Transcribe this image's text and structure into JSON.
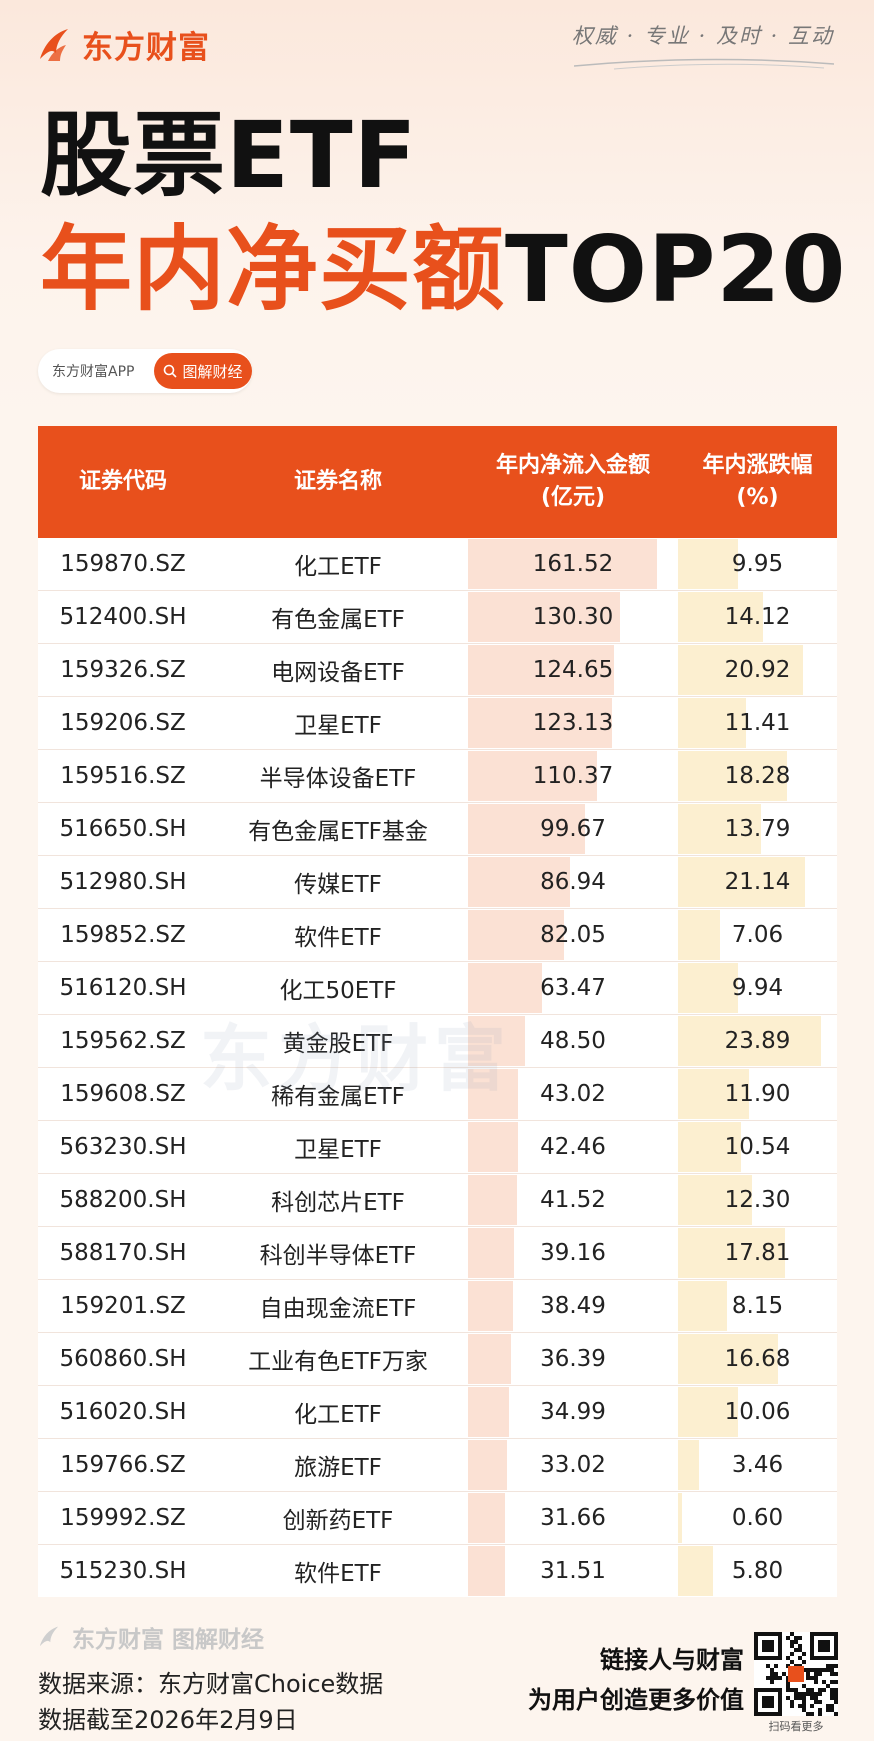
{
  "brand": {
    "name": "东方财富",
    "slogan": "权威 · 专业 · 及时 · 互动"
  },
  "title": {
    "line1": "股票ETF",
    "line2_highlight": "年内净买额",
    "line2_rest": "TOP20"
  },
  "tag": {
    "app": "东方财富APP",
    "button": "图解财经"
  },
  "colors": {
    "accent": "#e8501c",
    "inflow_bar": "#fbe1d4",
    "change_bar": "#fcefd0"
  },
  "table": {
    "headers": {
      "code": "证券代码",
      "name": "证券名称",
      "inflow": "年内净流入金额",
      "inflow_unit": "(亿元)",
      "change": "年内涨跌幅",
      "change_unit": "(%)"
    },
    "rows": [
      {
        "code": "159870.SZ",
        "name": "化工ETF",
        "inflow": "161.52",
        "change": "9.95"
      },
      {
        "code": "512400.SH",
        "name": "有色金属ETF",
        "inflow": "130.30",
        "change": "14.12"
      },
      {
        "code": "159326.SZ",
        "name": "电网设备ETF",
        "inflow": "124.65",
        "change": "20.92"
      },
      {
        "code": "159206.SZ",
        "name": "卫星ETF",
        "inflow": "123.13",
        "change": "11.41"
      },
      {
        "code": "159516.SZ",
        "name": "半导体设备ETF",
        "inflow": "110.37",
        "change": "18.28"
      },
      {
        "code": "516650.SH",
        "name": "有色金属ETF基金",
        "inflow": "99.67",
        "change": "13.79"
      },
      {
        "code": "512980.SH",
        "name": "传媒ETF",
        "inflow": "86.94",
        "change": "21.14"
      },
      {
        "code": "159852.SZ",
        "name": "软件ETF",
        "inflow": "82.05",
        "change": "7.06"
      },
      {
        "code": "516120.SH",
        "name": "化工50ETF",
        "inflow": "63.47",
        "change": "9.94"
      },
      {
        "code": "159562.SZ",
        "name": "黄金股ETF",
        "inflow": "48.50",
        "change": "23.89"
      },
      {
        "code": "159608.SZ",
        "name": "稀有金属ETF",
        "inflow": "43.02",
        "change": "11.90"
      },
      {
        "code": "563230.SH",
        "name": "卫星ETF",
        "inflow": "42.46",
        "change": "10.54"
      },
      {
        "code": "588200.SH",
        "name": "科创芯片ETF",
        "inflow": "41.52",
        "change": "12.30"
      },
      {
        "code": "588170.SH",
        "name": "科创半导体ETF",
        "inflow": "39.16",
        "change": "17.81"
      },
      {
        "code": "159201.SZ",
        "name": "自由现金流ETF",
        "inflow": "38.49",
        "change": "8.15"
      },
      {
        "code": "560860.SH",
        "name": "工业有色ETF万家",
        "inflow": "36.39",
        "change": "16.68"
      },
      {
        "code": "516020.SH",
        "name": "化工ETF",
        "inflow": "34.99",
        "change": "10.06"
      },
      {
        "code": "159766.SZ",
        "name": "旅游ETF",
        "inflow": "33.02",
        "change": "3.46"
      },
      {
        "code": "159992.SZ",
        "name": "创新药ETF",
        "inflow": "31.66",
        "change": "0.60"
      },
      {
        "code": "515230.SH",
        "name": "软件ETF",
        "inflow": "31.51",
        "change": "5.80"
      }
    ]
  },
  "footer": {
    "logo": "东方财富 图解财经",
    "source": "数据来源：东方财富Choice数据",
    "date": "数据截至2026年2月9日",
    "slogan_line1": "链接人与财富",
    "slogan_line2": "为用户创造更多价值",
    "qr_label": "扫码看更多"
  }
}
